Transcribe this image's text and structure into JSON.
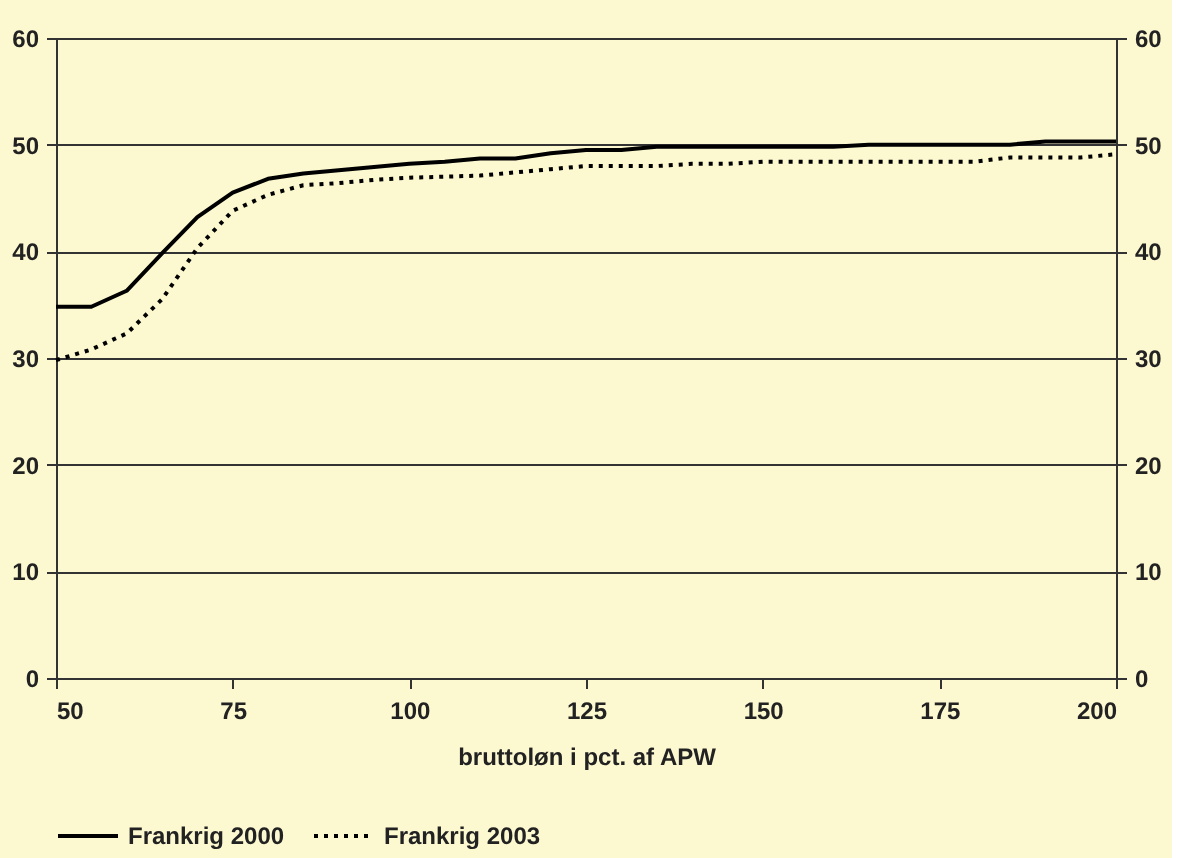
{
  "chart_data": {
    "type": "line",
    "xlabel": "bruttoløn i pct. af APW",
    "x": [
      50,
      55,
      60,
      65,
      70,
      75,
      80,
      85,
      90,
      95,
      100,
      105,
      110,
      115,
      120,
      125,
      130,
      135,
      140,
      145,
      150,
      155,
      160,
      165,
      170,
      175,
      180,
      185,
      190,
      195,
      200
    ],
    "series": [
      {
        "name": "Frankrig 2000",
        "color": "#000000",
        "line_style": "solid",
        "values": [
          34.8,
          34.8,
          36.3,
          39.8,
          43.2,
          45.5,
          46.8,
          47.3,
          47.6,
          47.9,
          48.2,
          48.4,
          48.7,
          48.7,
          49.2,
          49.5,
          49.5,
          49.8,
          49.8,
          49.8,
          49.8,
          49.8,
          49.8,
          50.0,
          50.0,
          50.0,
          50.0,
          50.0,
          50.3,
          50.3,
          50.3
        ]
      },
      {
        "name": "Frankrig 2003",
        "color": "#000000",
        "line_style": "dotted",
        "values": [
          29.8,
          30.8,
          32.3,
          35.5,
          40.3,
          43.8,
          45.3,
          46.2,
          46.4,
          46.7,
          46.9,
          47.0,
          47.1,
          47.4,
          47.7,
          48.0,
          48.0,
          48.0,
          48.2,
          48.2,
          48.4,
          48.4,
          48.4,
          48.4,
          48.4,
          48.4,
          48.4,
          48.8,
          48.8,
          48.8,
          49.1
        ]
      }
    ],
    "xlim": [
      50,
      200
    ],
    "xticks": [
      50,
      75,
      100,
      125,
      150,
      175,
      200
    ],
    "ylim": [
      0,
      60
    ],
    "yticks": [
      0,
      10,
      20,
      30,
      40,
      50,
      60
    ],
    "y2lim": [
      0,
      60
    ],
    "y2ticks": [
      0,
      10,
      20,
      30,
      40,
      50,
      60
    ],
    "grid": "y",
    "legend": "bottom"
  }
}
